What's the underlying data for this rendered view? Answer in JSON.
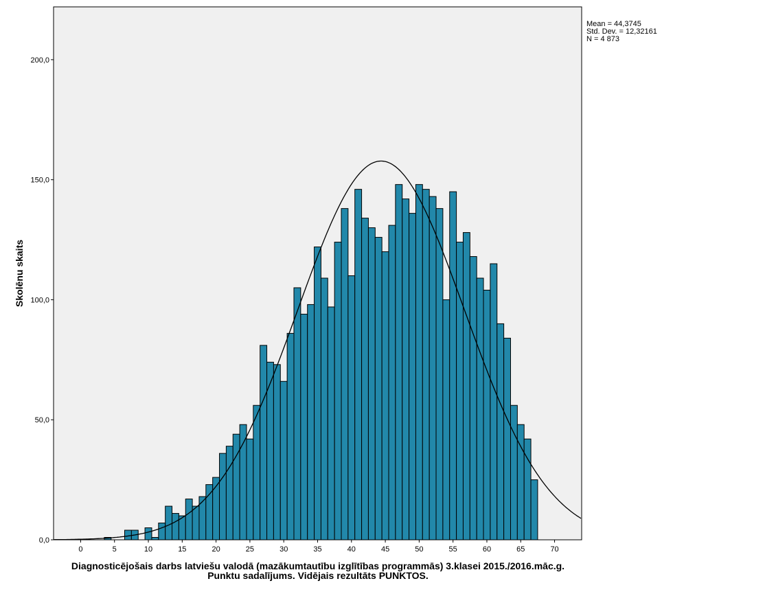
{
  "chart_data": {
    "type": "bar",
    "title": "",
    "xlabel_lines": [
      "Diagnosticējošais darbs latviešu valodā (mazākumtautību izglītības programmās) 3.klasei 2015./2016.māc.g.",
      "Punktu sadalījums. Vidējais rezultāts PUNKTOS."
    ],
    "ylabel": "Skolēnu skaits",
    "x": [
      4,
      5,
      6,
      7,
      8,
      9,
      10,
      11,
      12,
      13,
      14,
      15,
      16,
      17,
      18,
      19,
      20,
      21,
      22,
      23,
      24,
      25,
      26,
      27,
      28,
      29,
      30,
      31,
      32,
      33,
      34,
      35,
      36,
      37,
      38,
      39,
      40,
      41,
      42,
      43,
      44,
      45,
      46,
      47,
      48,
      49,
      50,
      51,
      52,
      53,
      54,
      55,
      56,
      57,
      58,
      59,
      60,
      61,
      62,
      63,
      64,
      65,
      66,
      67
    ],
    "values": [
      1,
      0,
      0,
      4,
      4,
      0,
      5,
      1,
      7,
      14,
      11,
      10,
      17,
      14,
      18,
      23,
      26,
      36,
      39,
      44,
      48,
      42,
      56,
      81,
      74,
      73,
      66,
      86,
      105,
      94,
      98,
      122,
      109,
      97,
      124,
      138,
      110,
      146,
      134,
      130,
      126,
      120,
      131,
      148,
      142,
      136,
      148,
      146,
      143,
      138,
      100,
      145,
      124,
      128,
      118,
      109,
      104,
      115,
      90,
      84,
      56,
      48,
      42,
      25
    ],
    "xlim": [
      -4,
      74
    ],
    "ylim": [
      0,
      222
    ],
    "xticks": [
      0,
      5,
      10,
      15,
      20,
      25,
      30,
      35,
      40,
      45,
      50,
      55,
      60,
      65,
      70
    ],
    "xtick_labels": [
      "0",
      "5",
      "10",
      "15",
      "20",
      "25",
      "30",
      "35",
      "40",
      "45",
      "50",
      "55",
      "60",
      "65",
      "70"
    ],
    "yticks": [
      0,
      50,
      100,
      150,
      200
    ],
    "ytick_labels": [
      "0,0",
      "50,0",
      "100,0",
      "150,0",
      "200,0"
    ],
    "normal_curve": {
      "mean": 44.3745,
      "sd": 12.32161,
      "n": 4873,
      "bin_width": 1
    },
    "stats_lines": [
      "Mean = 44,3745",
      "Std. Dev. = 12,32161",
      "N = 4 873"
    ],
    "colors": {
      "bar": "#2288AA",
      "bar_edge": "#000000",
      "plot_bg": "#F0F0F0",
      "curve": "#000000"
    },
    "grid": false
  }
}
